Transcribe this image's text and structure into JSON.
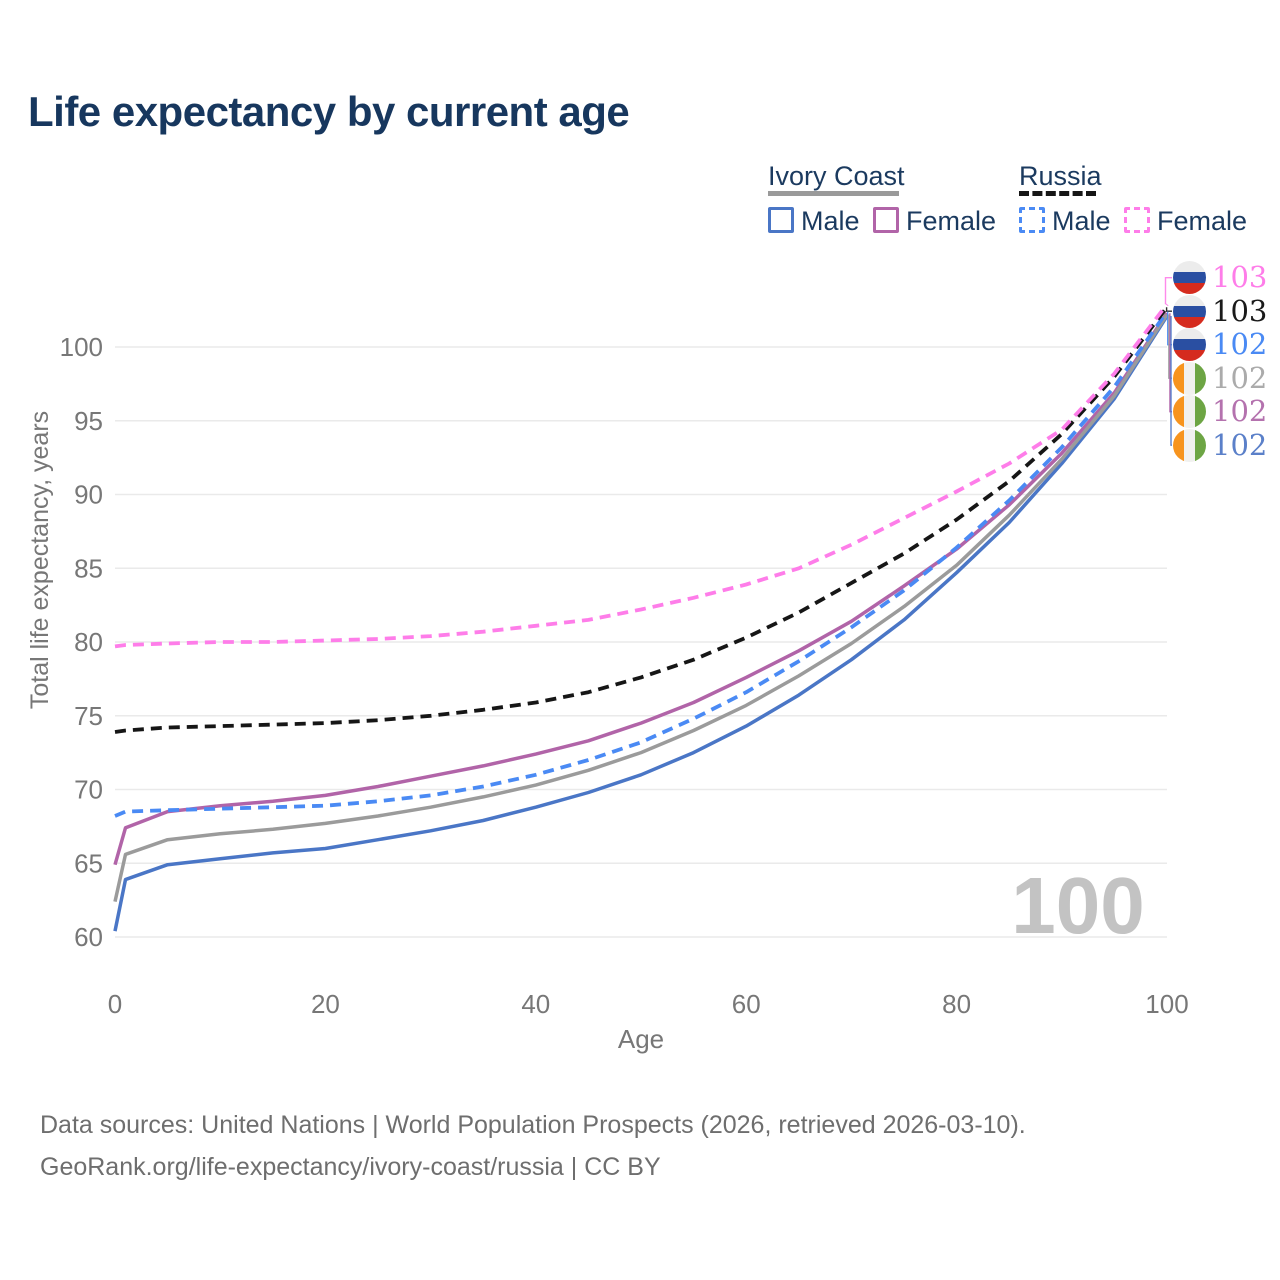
{
  "title": "Life expectancy by current age",
  "watermark": "100",
  "footer": {
    "line1": "Data sources: United Nations | World Population Prospects (2026, retrieved 2026-03-10).",
    "line2": "GeoRank.org/life-expectancy/ivory-coast/russia | CC BY"
  },
  "colors": {
    "title_text": "#17375e",
    "legend_text": "#1b3a5f",
    "axis_text": "#777777",
    "gridline": "#eaeaea",
    "watermark_text": "#c3c3c3",
    "footer_text": "#6e6e6e"
  },
  "legend": {
    "groups": [
      {
        "name": "Ivory Coast",
        "line_style": "solid",
        "underline_color": "#9a9a9a",
        "items": [
          {
            "label": "Male",
            "color": "#4a76c6"
          },
          {
            "label": "Female",
            "color": "#b164a8"
          }
        ]
      },
      {
        "name": "Russia",
        "line_style": "dashed",
        "underline_color": "#161616",
        "items": [
          {
            "label": "Male",
            "color": "#4a8af4"
          },
          {
            "label": "Female",
            "color": "#fe7de9"
          }
        ]
      }
    ]
  },
  "chart_data": {
    "type": "line",
    "title": "Life expectancy by current age",
    "xlabel": "Age",
    "ylabel": "Total life expectancy, years",
    "xlim": [
      0,
      100
    ],
    "ylim": [
      60,
      103.5
    ],
    "xticks": [
      0,
      20,
      40,
      60,
      80,
      100
    ],
    "yticks": [
      60,
      65,
      70,
      75,
      80,
      85,
      90,
      95,
      100
    ],
    "grid": "horizontal",
    "legend_position": "top-right",
    "x": [
      0,
      1,
      5,
      10,
      15,
      20,
      25,
      30,
      35,
      40,
      45,
      50,
      55,
      60,
      65,
      70,
      75,
      80,
      85,
      90,
      95,
      100
    ],
    "series": [
      {
        "name": "Russia Female",
        "country": "Russia",
        "sex": "female",
        "style": "dashed",
        "color": "#fe7de9",
        "label_color": "#fe7de9",
        "flag": "ru",
        "end_label": "103",
        "values": [
          79.7,
          79.8,
          79.9,
          80.0,
          80.0,
          80.1,
          80.2,
          80.4,
          80.7,
          81.1,
          81.5,
          82.2,
          83.0,
          83.9,
          85.0,
          86.6,
          88.4,
          90.2,
          92.1,
          94.4,
          98.2,
          102.9
        ]
      },
      {
        "name": "Russia Total",
        "country": "Russia",
        "sex": "total",
        "style": "dashed",
        "color": "#161616",
        "label_color": "#1a1a1a",
        "flag": "ru",
        "end_label": "103",
        "values": [
          73.9,
          74.0,
          74.2,
          74.3,
          74.4,
          74.5,
          74.7,
          75.0,
          75.4,
          75.9,
          76.6,
          77.6,
          78.8,
          80.3,
          82.0,
          84.0,
          86.0,
          88.3,
          90.9,
          94.1,
          98.0,
          102.7
        ]
      },
      {
        "name": "Russia Male",
        "country": "Russia",
        "sex": "male",
        "style": "dashed",
        "color": "#4a8af4",
        "label_color": "#4a8af4",
        "flag": "ru",
        "end_label": "102",
        "values": [
          68.2,
          68.5,
          68.6,
          68.7,
          68.8,
          68.9,
          69.2,
          69.6,
          70.2,
          71.0,
          72.0,
          73.2,
          74.8,
          76.6,
          78.7,
          81.0,
          83.5,
          86.4,
          89.6,
          93.2,
          97.3,
          102.4
        ]
      },
      {
        "name": "Ivory Coast Total",
        "country": "Ivory Coast",
        "sex": "total",
        "style": "solid",
        "color": "#9b9b9b",
        "label_color": "#ababab",
        "flag": "ci",
        "end_label": "102",
        "values": [
          62.4,
          65.6,
          66.6,
          67.0,
          67.3,
          67.7,
          68.2,
          68.8,
          69.5,
          70.3,
          71.3,
          72.5,
          74.0,
          75.7,
          77.7,
          79.9,
          82.4,
          85.2,
          88.6,
          92.4,
          96.7,
          102.2
        ]
      },
      {
        "name": "Ivory Coast Female",
        "country": "Ivory Coast",
        "sex": "female",
        "style": "solid",
        "color": "#b164a8",
        "label_color": "#b472ae",
        "flag": "ci",
        "end_label": "102",
        "values": [
          64.9,
          67.4,
          68.5,
          68.9,
          69.2,
          69.6,
          70.2,
          70.9,
          71.6,
          72.4,
          73.3,
          74.5,
          75.9,
          77.6,
          79.4,
          81.4,
          83.8,
          86.3,
          89.3,
          92.8,
          96.9,
          102.3
        ]
      },
      {
        "name": "Ivory Coast Male",
        "country": "Ivory Coast",
        "sex": "male",
        "style": "solid",
        "color": "#4a76c6",
        "label_color": "#5b80c9",
        "flag": "ci",
        "end_label": "102",
        "values": [
          60.4,
          63.9,
          64.9,
          65.3,
          65.7,
          66.0,
          66.6,
          67.2,
          67.9,
          68.8,
          69.8,
          71.0,
          72.5,
          74.3,
          76.4,
          78.8,
          81.5,
          84.7,
          88.1,
          92.1,
          96.5,
          102.1
        ]
      }
    ]
  }
}
